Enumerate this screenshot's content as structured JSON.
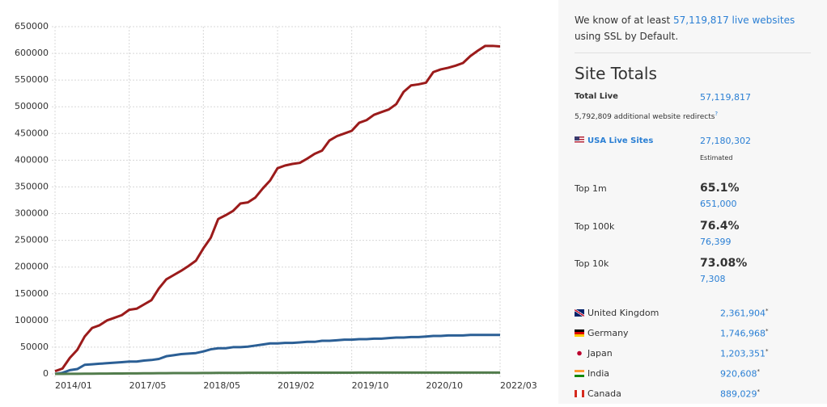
{
  "chart_data": {
    "type": "line",
    "categories": [
      "2014/01",
      null,
      null,
      null,
      null,
      null,
      null,
      null,
      null,
      null,
      "2017/05",
      null,
      null,
      null,
      null,
      null,
      null,
      null,
      null,
      null,
      "2018/05",
      null,
      null,
      null,
      null,
      null,
      null,
      null,
      null,
      null,
      "2019/02",
      null,
      null,
      null,
      null,
      null,
      null,
      null,
      null,
      null,
      "2019/10",
      null,
      null,
      null,
      null,
      null,
      null,
      null,
      null,
      null,
      "2020/10",
      null,
      null,
      null,
      null,
      null,
      null,
      null,
      null,
      null,
      "2022/03"
    ],
    "series": [
      {
        "color": "#9b1b1b",
        "values": [
          5000,
          10000,
          30000,
          45000,
          70000,
          86000,
          91000,
          100000,
          105000,
          110000,
          120000,
          122000,
          130000,
          138000,
          160000,
          177000,
          185000,
          193000,
          202000,
          212000,
          235000,
          255000,
          290000,
          297000,
          305000,
          319000,
          321000,
          330000,
          347000,
          362000,
          385000,
          390000,
          393000,
          395000,
          403000,
          412000,
          418000,
          437000,
          445000,
          450000,
          455000,
          470000,
          475000,
          485000,
          490000,
          495000,
          505000,
          528000,
          540000,
          542000,
          545000,
          565000,
          570000,
          573000,
          577000,
          582000,
          595000,
          605000,
          614000,
          614000,
          613000
        ]
      },
      {
        "color": "#2b5f95",
        "values": [
          0,
          2000,
          7000,
          9000,
          17000,
          18000,
          19000,
          20000,
          21000,
          22000,
          23000,
          23000,
          25000,
          26000,
          28000,
          33000,
          35000,
          37000,
          38000,
          39000,
          42000,
          46000,
          48000,
          48000,
          50000,
          50000,
          51000,
          53000,
          55000,
          57000,
          57000,
          58000,
          58000,
          59000,
          60000,
          60000,
          62000,
          62000,
          63000,
          64000,
          64000,
          65000,
          65000,
          66000,
          66000,
          67000,
          68000,
          68000,
          69000,
          69000,
          70000,
          71000,
          71000,
          72000,
          72000,
          72000,
          73000,
          73000,
          73000,
          73000,
          73000
        ]
      },
      {
        "color": "#527c4c",
        "values": [
          0,
          0,
          100,
          200,
          300,
          400,
          500,
          600,
          700,
          800,
          900,
          1000,
          1100,
          1200,
          1300,
          1400,
          1500,
          1500,
          1600,
          1600,
          1700,
          1700,
          1800,
          1800,
          1900,
          1900,
          2000,
          2000,
          2000,
          2100,
          2100,
          2100,
          2200,
          2200,
          2200,
          2200,
          2300,
          2300,
          2300,
          2300,
          2300,
          2400,
          2400,
          2400,
          2400,
          2400,
          2400,
          2500,
          2500,
          2500,
          2500,
          2500,
          2500,
          2500,
          2500,
          2500,
          2500,
          2500,
          2500,
          2500,
          2500
        ]
      }
    ],
    "ylim": [
      0,
      650000
    ],
    "yticks": [
      0,
      50000,
      100000,
      150000,
      200000,
      250000,
      300000,
      350000,
      400000,
      450000,
      500000,
      550000,
      600000,
      650000
    ],
    "grid": true
  },
  "panel": {
    "intro": {
      "prefix": "We know of at least",
      "link": "57,119,817 live websites",
      "suffix": "using SSL by Default."
    },
    "title": "Site Totals",
    "total_live": {
      "label": "Total Live",
      "value": "57,119,817"
    },
    "redirects": {
      "text": "5,792,809 additional website redirects",
      "mark": "?"
    },
    "usa": {
      "label": "USA Live Sites",
      "value": "27,180,302",
      "note": "Estimated"
    },
    "tops": [
      {
        "label": "Top 1m",
        "pct": "65.1%",
        "count": "651,000"
      },
      {
        "label": "Top 100k",
        "pct": "76.4%",
        "count": "76,399"
      },
      {
        "label": "Top 10k",
        "pct": "73.08%",
        "count": "7,308"
      }
    ],
    "countries": [
      {
        "name": "United Kingdom",
        "value": "2,361,904",
        "mark": "*"
      },
      {
        "name": "Germany",
        "value": "1,746,968",
        "mark": "*"
      },
      {
        "name": "Japan",
        "value": "1,203,351",
        "mark": "*"
      },
      {
        "name": "India",
        "value": "920,608",
        "mark": "*"
      },
      {
        "name": "Canada",
        "value": "889,029",
        "mark": "*"
      }
    ]
  }
}
